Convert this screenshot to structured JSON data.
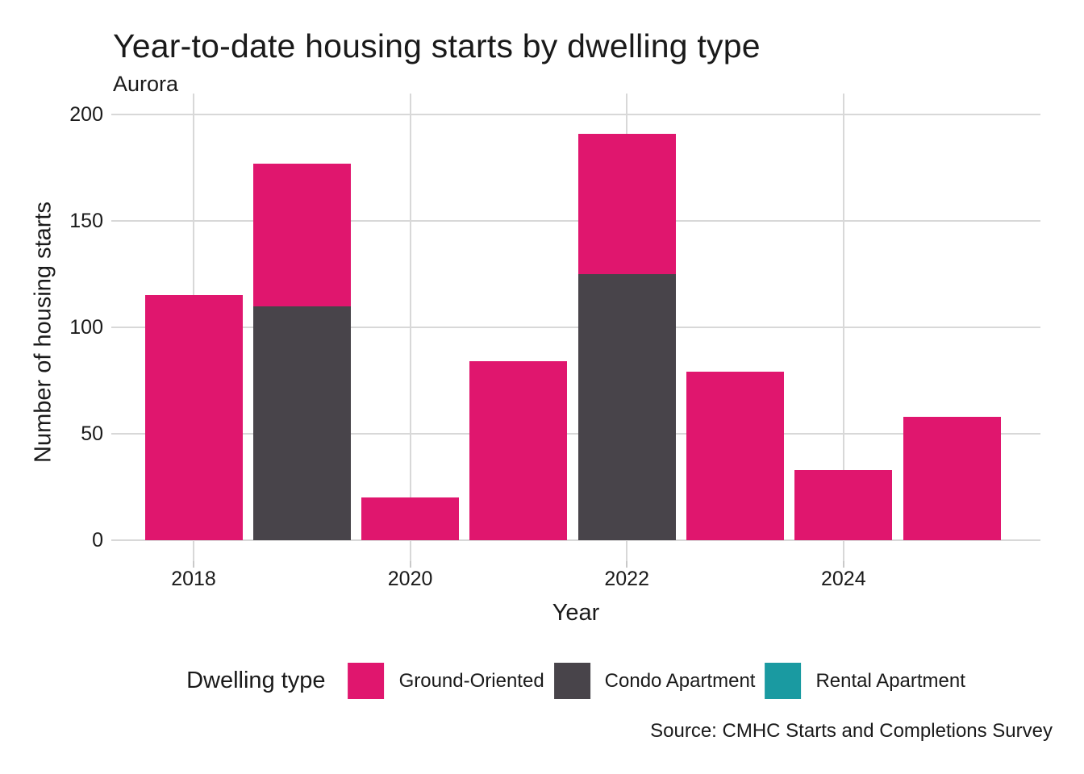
{
  "title": "Year-to-date housing starts by dwelling type",
  "subtitle": "Aurora",
  "source_note": "Source: CMHC Starts and Completions Survey",
  "legend": {
    "title": "Dwelling type"
  },
  "colors": {
    "ground_oriented": "#E0166E",
    "condo_apartment": "#48444A",
    "rental_apartment": "#1A9AA1",
    "gridline": "#d8d8d8",
    "text": "#1a1a1a"
  },
  "chart_data": {
    "type": "bar",
    "stacked": true,
    "title": "Year-to-date housing starts by dwelling type",
    "subtitle": "Aurora",
    "xlabel": "Year",
    "ylabel": "Number of housing starts",
    "categories": [
      "2018",
      "2019",
      "2020",
      "2021",
      "2022",
      "2023",
      "2024",
      "2025"
    ],
    "series": [
      {
        "name": "Ground-Oriented",
        "color": "#E0166E",
        "values": [
          115,
          67,
          20,
          84,
          66,
          79,
          33,
          58
        ]
      },
      {
        "name": "Condo Apartment",
        "color": "#48444A",
        "values": [
          0,
          110,
          0,
          0,
          125,
          0,
          0,
          0
        ]
      },
      {
        "name": "Rental Apartment",
        "color": "#1A9AA1",
        "values": [
          0,
          0,
          0,
          0,
          0,
          0,
          0,
          0
        ]
      }
    ],
    "stack_order_bottom_to_top": [
      "Rental Apartment",
      "Condo Apartment",
      "Ground-Oriented"
    ],
    "totals": [
      115,
      177,
      20,
      84,
      191,
      79,
      33,
      58
    ],
    "ylim": [
      0,
      200
    ],
    "yticks": [
      0,
      50,
      100,
      150,
      200
    ],
    "xticks_shown": [
      "2018",
      "2020",
      "2022",
      "2024"
    ],
    "grid": true,
    "legend_position": "bottom",
    "legend_title": "Dwelling type"
  }
}
